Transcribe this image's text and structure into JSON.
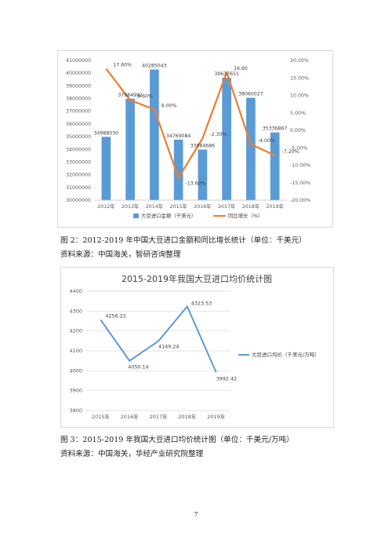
{
  "chart_data": [
    {
      "type": "bar+line",
      "categories": [
        "2012年",
        "2013年",
        "2014年",
        "2015年",
        "2016年",
        "2017年",
        "2018年",
        "2019年"
      ],
      "series": [
        {
          "name": "大豆进口金额（千美元）",
          "type": "bar",
          "axis": "left",
          "values": [
            34988030,
            37984992,
            40285043,
            34769084,
            33984686,
            39637651,
            38060027,
            35336867
          ],
          "labels": [
            "34988030",
            "37984992",
            "40285043",
            "34769084",
            "33984686",
            "39637651",
            "38060027",
            "35336867"
          ],
          "color": "#5b9bd5"
        },
        {
          "name": "同比增长（%）",
          "type": "line",
          "axis": "right",
          "values": [
            17.6,
            8.6,
            6.0,
            -13.6,
            -2.3,
            16.6,
            -4.0,
            -7.2
          ],
          "labels": [
            "17.60%",
            "8.60%",
            "6.00%",
            "-13.60%",
            "-2.30%",
            "16.60",
            "-4.00%",
            "-7.20%"
          ],
          "color": "#ed7d31"
        }
      ],
      "ylim_left": [
        30000000,
        41000000
      ],
      "yticks_left": [
        "30000000",
        "31000000",
        "32000000",
        "33000000",
        "34000000",
        "35000000",
        "36000000",
        "37000000",
        "38000000",
        "39000000",
        "40000000",
        "41000000"
      ],
      "ylim_right": [
        -20,
        20
      ],
      "yticks_right": [
        "-20.00%",
        "-15.00%",
        "-10.00%",
        "-5.00%",
        "0.00%",
        "5.00%",
        "10.00%",
        "15.00%",
        "20.00%"
      ],
      "legend_position": "bottom",
      "grid": false
    },
    {
      "type": "line",
      "title": "2015-2019年我国大豆进口均价统计图",
      "categories": [
        "2015年",
        "2016年",
        "2017年",
        "2018年",
        "2019年"
      ],
      "series": [
        {
          "name": "大豆进口均价（千美元/万吨）",
          "values": [
            4256.22,
            4050.14,
            4149.24,
            4323.53,
            3992.42
          ],
          "labels": [
            "4256.22",
            "4050.14",
            "4149.24",
            "4323.53",
            "3992.42"
          ],
          "color": "#5b9bd5"
        }
      ],
      "ylim": [
        3800,
        4400
      ],
      "yticks": [
        "3800",
        "3900",
        "4000",
        "4100",
        "4200",
        "4300",
        "4400"
      ],
      "legend_position": "right",
      "grid": true
    }
  ],
  "captions": {
    "fig2_title": "图 2：2012-2019 年中国大豆进口金额和同比增长统计（单位：千美元）",
    "fig2_source": "资料来源：中国海关，智研咨询整理",
    "fig3_title": "图 3：2015-2019 年我国大豆进口均价统计图（单位：千美元/万吨）",
    "fig3_source": "资料来源：中国海关，华经产业研究院整理"
  },
  "page_number": "7"
}
